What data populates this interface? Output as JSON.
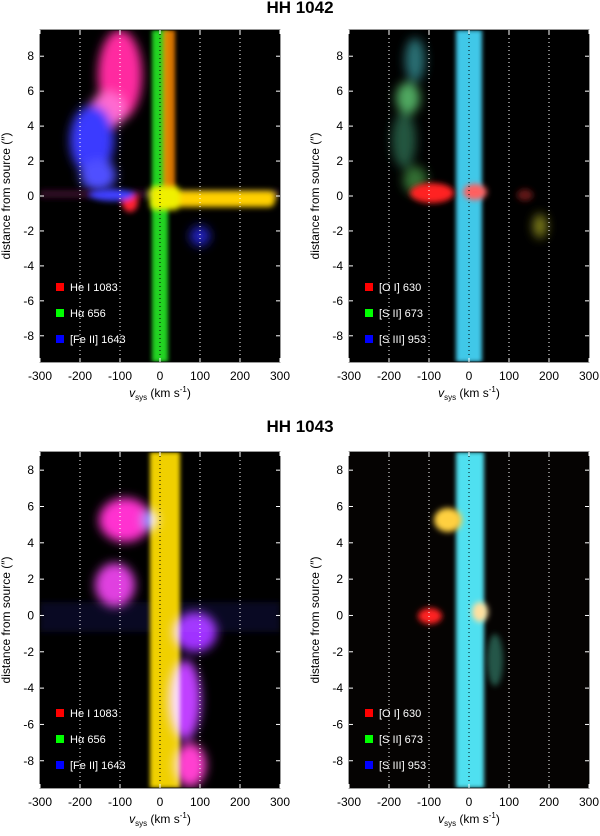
{
  "figure": {
    "title_top": "HH 1042",
    "title_bottom": "HH 1043",
    "xlabel_main": "v",
    "xlabel_sub": "sys",
    "xlabel_units": "(km s",
    "xlabel_exp": "-1",
    "xlabel_close": ")",
    "ylabel": "distance from source (″)"
  },
  "chart_data": [
    {
      "type": "heatmap",
      "id": "hh1042-left",
      "title": "HH 1042",
      "xlabel": "v_sys (km s^-1)",
      "ylabel": "distance from source (″)",
      "xlim": [
        -300,
        300
      ],
      "ylim": [
        -9.5,
        9.5
      ],
      "x_ticks": [
        -300,
        -200,
        -100,
        0,
        100,
        200,
        300
      ],
      "y_ticks": [
        8,
        6,
        4,
        2,
        0,
        -2,
        -4,
        -6,
        -8
      ],
      "dotted_gridlines_x": [
        -200,
        -100,
        0,
        100,
        200
      ],
      "legend": [
        {
          "label": "He I 1083",
          "color": "#ff0000"
        },
        {
          "label": "Hα 656",
          "color": "#00ff00"
        },
        {
          "label": "[Fe II] 1643",
          "color": "#0000ff"
        }
      ]
    },
    {
      "type": "heatmap",
      "id": "hh1042-right",
      "title": "HH 1042",
      "xlabel": "v_sys (km s^-1)",
      "ylabel": "distance from source (″)",
      "xlim": [
        -300,
        300
      ],
      "ylim": [
        -9.5,
        9.5
      ],
      "x_ticks": [
        -300,
        -200,
        -100,
        0,
        100,
        200,
        300
      ],
      "y_ticks": [
        8,
        6,
        4,
        2,
        0,
        -2,
        -4,
        -6,
        -8
      ],
      "dotted_gridlines_x": [
        -200,
        -100,
        0,
        100,
        200
      ],
      "legend": [
        {
          "label": "[O I] 630",
          "color": "#ff0000"
        },
        {
          "label": "[S II] 673",
          "color": "#00ff00"
        },
        {
          "label": "[S III] 953",
          "color": "#0000ff"
        }
      ]
    },
    {
      "type": "heatmap",
      "id": "hh1043-left",
      "title": "HH 1043",
      "xlabel": "v_sys (km s^-1)",
      "ylabel": "distance from source (″)",
      "xlim": [
        -300,
        300
      ],
      "ylim": [
        -9.5,
        9.0
      ],
      "x_ticks": [
        -300,
        -200,
        -100,
        0,
        100,
        200,
        300
      ],
      "y_ticks": [
        8,
        6,
        4,
        2,
        0,
        -2,
        -4,
        -6,
        -8
      ],
      "dotted_gridlines_x": [
        -200,
        -100,
        0,
        100,
        200
      ],
      "legend": [
        {
          "label": "He I 1083",
          "color": "#ff0000"
        },
        {
          "label": "Hα 656",
          "color": "#00ff00"
        },
        {
          "label": "[Fe II] 1643",
          "color": "#0000ff"
        }
      ]
    },
    {
      "type": "heatmap",
      "id": "hh1043-right",
      "title": "HH 1043",
      "xlabel": "v_sys (km s^-1)",
      "ylabel": "distance from source (″)",
      "xlim": [
        -300,
        300
      ],
      "ylim": [
        -9.5,
        9.0
      ],
      "x_ticks": [
        -300,
        -200,
        -100,
        0,
        100,
        200,
        300
      ],
      "y_ticks": [
        8,
        6,
        4,
        2,
        0,
        -2,
        -4,
        -6,
        -8
      ],
      "dotted_gridlines_x": [
        -200,
        -100,
        0,
        100,
        200
      ],
      "legend": [
        {
          "label": "[O I] 630",
          "color": "#ff0000"
        },
        {
          "label": "[S II] 673",
          "color": "#00ff00"
        },
        {
          "label": "[S III] 953",
          "color": "#0000ff"
        }
      ]
    }
  ]
}
